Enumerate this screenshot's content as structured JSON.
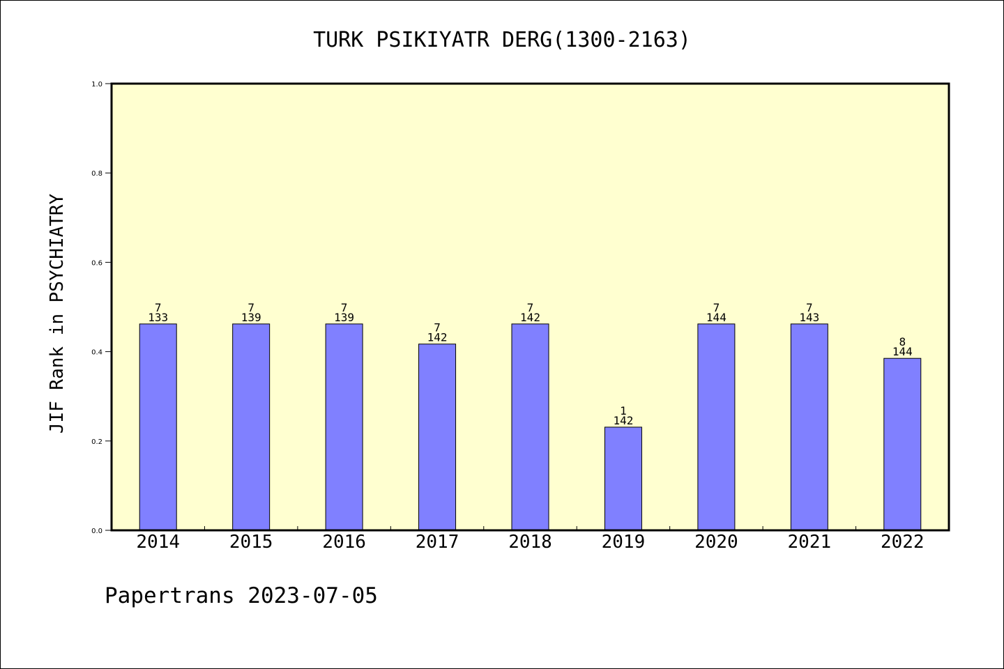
{
  "chart_data": {
    "type": "bar",
    "title": "TURK PSIKIYATR DERG(1300-2163)",
    "ylabel": "JIF Rank in PSYCHIATRY",
    "xlabel": "",
    "ylim": [
      0,
      1.0
    ],
    "yticks": [
      "0.0",
      "0.2",
      "0.4",
      "0.6",
      "0.8",
      "1.0"
    ],
    "categories": [
      "2014",
      "2015",
      "2016",
      "2017",
      "2018",
      "2019",
      "2020",
      "2021",
      "2022"
    ],
    "values": [
      0.462,
      0.462,
      0.462,
      0.417,
      0.462,
      0.231,
      0.462,
      0.462,
      0.385
    ],
    "labels_top": [
      "7",
      "7",
      "7",
      "7",
      "7",
      "1",
      "7",
      "7",
      "8"
    ],
    "labels_bottom": [
      "133",
      "139",
      "139",
      "142",
      "142",
      "142",
      "144",
      "143",
      "144"
    ],
    "plot_background": "#ffffd0",
    "bar_color": "#8080ff",
    "grid": false
  },
  "footer": {
    "text": "Papertrans 2023-07-05"
  }
}
